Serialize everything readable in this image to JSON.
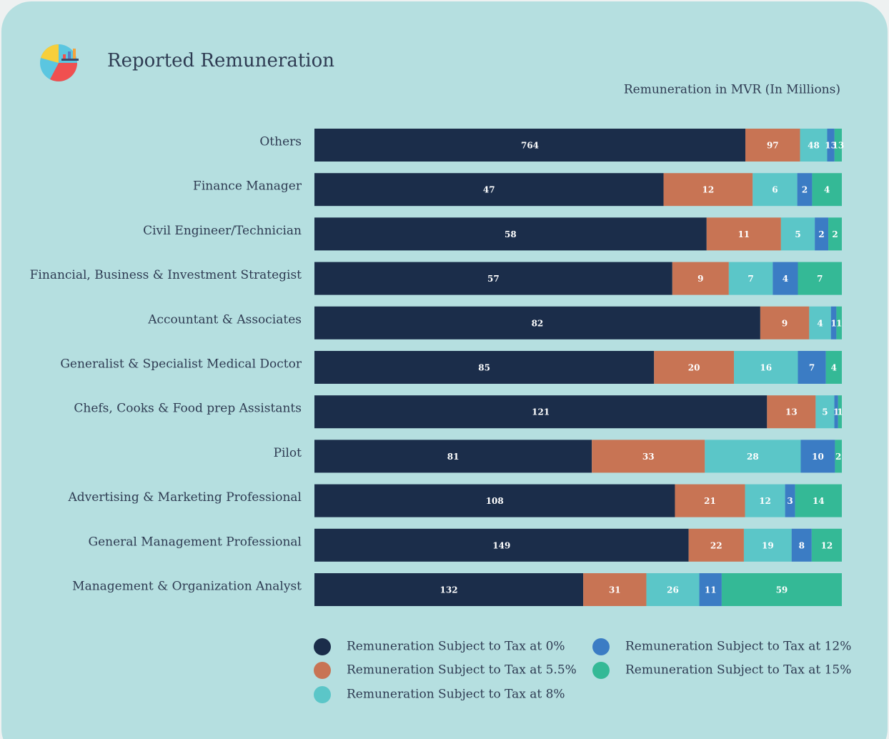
{
  "chart_data": {
    "type": "bar",
    "orientation": "horizontal",
    "stacked": true,
    "normalized": true,
    "title": "Reported Remuneration",
    "axis_label": "Remuneration in MVR (In Millions)",
    "categories": [
      "Others",
      "Finance Manager",
      "Civil Engineer/Technician",
      "Financial, Business & Investment Strategist",
      "Accountant & Associates",
      "Generalist & Specialist Medical Doctor",
      "Chefs, Cooks & Food prep Assistants",
      "Pilot",
      "Advertising & Marketing Professional",
      "General Management Professional",
      "Management & Organization Analyst"
    ],
    "series": [
      {
        "name": "Remuneration Subject to Tax at 0%",
        "color": "#1b2d4a",
        "values": [
          764,
          47,
          58,
          57,
          82,
          85,
          121,
          81,
          108,
          149,
          132
        ]
      },
      {
        "name": "Remuneration Subject to Tax at 5.5%",
        "color": "#c87454",
        "values": [
          97,
          12,
          11,
          9,
          9,
          20,
          13,
          33,
          21,
          22,
          31
        ]
      },
      {
        "name": "Remuneration Subject to Tax at 8%",
        "color": "#5bc6c8",
        "values": [
          48,
          6,
          5,
          7,
          4,
          16,
          5,
          28,
          12,
          19,
          26
        ]
      },
      {
        "name": "Remuneration Subject to Tax at 12%",
        "color": "#3b7cc4",
        "values": [
          13,
          2,
          2,
          4,
          1,
          7,
          1,
          10,
          3,
          8,
          11
        ]
      },
      {
        "name": "Remuneration Subject to Tax at 15%",
        "color": "#34b996",
        "values": [
          13,
          4,
          2,
          7,
          1,
          4,
          1,
          2,
          14,
          12,
          59
        ]
      }
    ],
    "legend": "bottom"
  }
}
